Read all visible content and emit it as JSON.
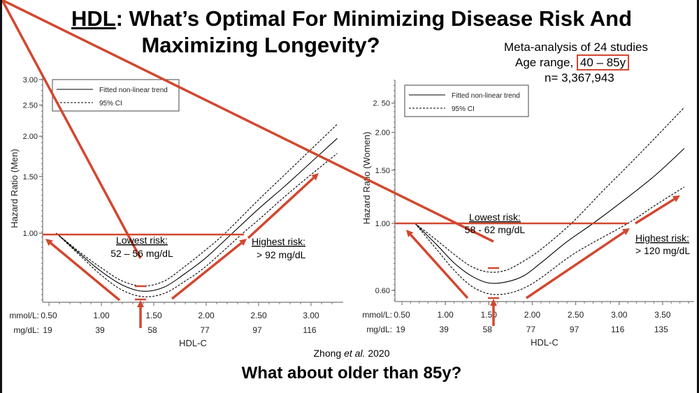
{
  "title": {
    "prefix": "HDL",
    "line1_rest": ": What’s Optimal For Minimizing Disease Risk And",
    "line2": "Maximizing Longevity?"
  },
  "meta": {
    "studies": "Meta-analysis of 24 studies",
    "age_label": "Age range, ",
    "age_range": "40 – 85y",
    "n": "n= 3,367,943"
  },
  "citation": {
    "author": "Zhong ",
    "etal": "et al.",
    "year": " 2020"
  },
  "question": "What about older than 85y?",
  "colors": {
    "annotation": "#d2472f",
    "curve": "#000000"
  },
  "chart_data": [
    {
      "type": "line",
      "ylabel": "Hazard Ratio (Men)",
      "xlabel": "HDL-C",
      "y_scale": "log",
      "ylim": [
        0.6,
        3.0
      ],
      "xlim": [
        0.45,
        3.3
      ],
      "yticks": [
        "1.00",
        "1.50",
        "2.00",
        "2.50",
        "3.00"
      ],
      "x_unit_labels": [
        "mmol/L:",
        "mg/dL:"
      ],
      "xticks_mmol": [
        "0.50",
        "1.00",
        "1.50",
        "2.00",
        "2.50",
        "3.00"
      ],
      "xticks_mgdl": [
        "19",
        "39",
        "58",
        "77",
        "97",
        "116"
      ],
      "legend": {
        "position": "top-left",
        "entries": [
          "Fitted non-linear trend",
          "95% CI"
        ]
      },
      "series": [
        {
          "name": "Fitted non-linear trend",
          "style": "solid",
          "points": [
            [
              0.57,
              1.0
            ],
            [
              0.8,
              0.86
            ],
            [
              1.0,
              0.76
            ],
            [
              1.2,
              0.69
            ],
            [
              1.4,
              0.66
            ],
            [
              1.6,
              0.68
            ],
            [
              1.8,
              0.75
            ],
            [
              2.0,
              0.84
            ],
            [
              2.25,
              1.0
            ],
            [
              2.5,
              1.19
            ],
            [
              2.75,
              1.4
            ],
            [
              3.0,
              1.66
            ],
            [
              3.25,
              1.97
            ]
          ]
        },
        {
          "name": "95% CI",
          "style": "dashed",
          "points": [
            [
              0.57,
              1.0
            ],
            [
              0.8,
              0.87
            ],
            [
              1.0,
              0.78
            ],
            [
              1.2,
              0.71
            ],
            [
              1.4,
              0.685
            ],
            [
              1.6,
              0.71
            ],
            [
              1.8,
              0.79
            ],
            [
              2.0,
              0.89
            ],
            [
              2.18,
              1.0
            ],
            [
              2.5,
              1.27
            ],
            [
              2.75,
              1.52
            ],
            [
              3.0,
              1.82
            ],
            [
              3.25,
              2.18
            ]
          ]
        },
        {
          "name": "95% CI",
          "style": "dashed",
          "points": [
            [
              0.57,
              1.0
            ],
            [
              0.8,
              0.85
            ],
            [
              1.0,
              0.74
            ],
            [
              1.2,
              0.665
            ],
            [
              1.4,
              0.635
            ],
            [
              1.6,
              0.65
            ],
            [
              1.8,
              0.71
            ],
            [
              2.0,
              0.79
            ],
            [
              2.35,
              1.0
            ],
            [
              2.5,
              1.1
            ],
            [
              2.75,
              1.3
            ],
            [
              3.0,
              1.52
            ],
            [
              3.25,
              1.77
            ]
          ]
        }
      ],
      "annotations": {
        "lowest_title": "Lowest risk:",
        "lowest_value": "52 – 56 mg/dL",
        "highest_title": "Highest risk:",
        "highest_value": "> 92 mg/dL"
      }
    },
    {
      "type": "line",
      "ylabel": "Hazard Ratio  (Women)",
      "xlabel": "HDL-C",
      "y_scale": "log",
      "ylim": [
        0.56,
        2.7
      ],
      "xlim": [
        0.45,
        3.85
      ],
      "yticks": [
        "0.60",
        "1.00",
        "1.50",
        "2.00",
        "2. 50"
      ],
      "x_unit_labels": [
        "mmol/L:",
        "mg/dL:"
      ],
      "xticks_mmol": [
        "0.50",
        "1.00",
        "1.50",
        "2.00",
        "2.50",
        "3.00",
        "3.50"
      ],
      "xticks_mgdl": [
        "19",
        "39",
        "58",
        "77",
        "97",
        "116",
        "135"
      ],
      "legend": {
        "position": "top-left",
        "entries": [
          "Fitted non-linear trend",
          "95% CI"
        ]
      },
      "series": [
        {
          "name": "Fitted non-linear trend",
          "style": "solid",
          "points": [
            [
              0.65,
              1.0
            ],
            [
              0.9,
              0.85
            ],
            [
              1.1,
              0.74
            ],
            [
              1.3,
              0.67
            ],
            [
              1.5,
              0.635
            ],
            [
              1.7,
              0.64
            ],
            [
              1.9,
              0.67
            ],
            [
              2.1,
              0.74
            ],
            [
              2.4,
              0.87
            ],
            [
              2.7,
              1.0
            ],
            [
              3.0,
              1.16
            ],
            [
              3.4,
              1.43
            ],
            [
              3.75,
              1.77
            ]
          ]
        },
        {
          "name": "95% CI",
          "style": "dashed",
          "points": [
            [
              0.65,
              1.0
            ],
            [
              0.9,
              0.88
            ],
            [
              1.1,
              0.79
            ],
            [
              1.3,
              0.72
            ],
            [
              1.5,
              0.69
            ],
            [
              1.7,
              0.7
            ],
            [
              1.9,
              0.75
            ],
            [
              2.1,
              0.82
            ],
            [
              2.45,
              1.0
            ],
            [
              2.8,
              1.27
            ],
            [
              3.1,
              1.55
            ],
            [
              3.4,
              1.9
            ],
            [
              3.75,
              2.42
            ]
          ]
        },
        {
          "name": "95% CI",
          "style": "dashed",
          "points": [
            [
              0.65,
              1.0
            ],
            [
              0.9,
              0.82
            ],
            [
              1.1,
              0.7
            ],
            [
              1.3,
              0.62
            ],
            [
              1.5,
              0.585
            ],
            [
              1.7,
              0.585
            ],
            [
              1.9,
              0.61
            ],
            [
              2.1,
              0.66
            ],
            [
              2.5,
              0.8
            ],
            [
              3.1,
              1.0
            ],
            [
              3.4,
              1.14
            ],
            [
              3.75,
              1.32
            ]
          ]
        }
      ],
      "annotations": {
        "lowest_title": "Lowest risk:",
        "lowest_value": "58 - 62 mg/dL",
        "highest_title": "Highest risk:",
        "highest_value": "> 120 mg/dL"
      }
    }
  ]
}
